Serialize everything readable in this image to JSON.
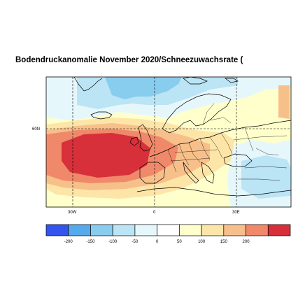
{
  "title": "Bodendruckanomalie November 2020/Schneezuwachsrate (",
  "map": {
    "region": "Europe / North Atlantic",
    "lat_labels": [
      "60N"
    ],
    "lon_labels": [
      "30W",
      "0",
      "30E"
    ],
    "gridlines": "dashed",
    "anomaly_pattern": {
      "high_center": "North Atlantic west of Iberia/Ireland (max > 200)",
      "secondary_high": "Central Europe",
      "low": "Greenland Sea / Svalbard, Western Russia"
    }
  },
  "legend": {
    "tick_labels": [
      "-200",
      "-150",
      "-100",
      "-50",
      "0",
      "50",
      "100",
      "150",
      "200"
    ],
    "colors": [
      "#3355ee",
      "#55aaee",
      "#88ccee",
      "#bbe4f5",
      "#e6f7fc",
      "#ffffff",
      "#ffffcc",
      "#fde5a8",
      "#f7c08a",
      "#f0896a",
      "#d7303a"
    ]
  }
}
